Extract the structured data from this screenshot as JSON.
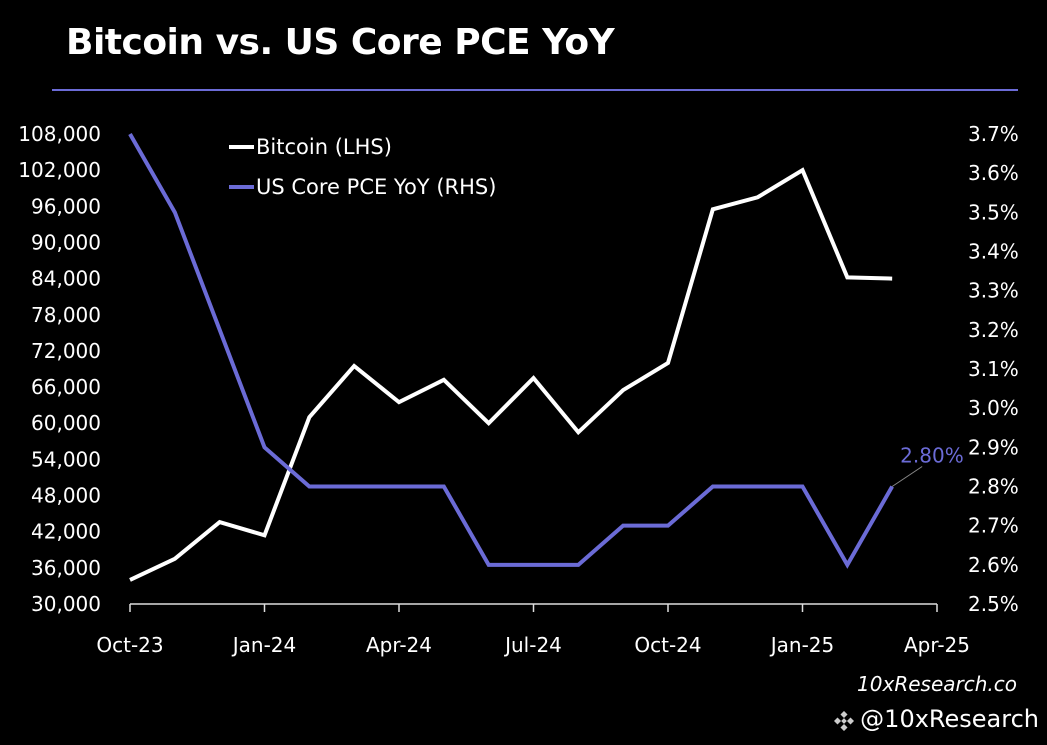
{
  "chart_data": {
    "type": "line",
    "title": "Bitcoin vs. US Core PCE YoY",
    "x": [
      "Oct-23",
      "Nov-23",
      "Dec-23",
      "Jan-24",
      "Feb-24",
      "Mar-24",
      "Apr-24",
      "May-24",
      "Jun-24",
      "Jul-24",
      "Aug-24",
      "Sep-24",
      "Oct-24",
      "Nov-24",
      "Dec-24",
      "Jan-25",
      "Feb-25",
      "Mar-25"
    ],
    "x_ticks": [
      "Oct-23",
      "Jan-24",
      "Apr-24",
      "Jul-24",
      "Oct-24",
      "Jan-25",
      "Apr-25"
    ],
    "y_left": {
      "range": [
        30000,
        108000
      ],
      "ticks": [
        "30,000",
        "36,000",
        "42,000",
        "48,000",
        "54,000",
        "60,000",
        "66,000",
        "72,000",
        "78,000",
        "84,000",
        "90,000",
        "96,000",
        "102,000",
        "108,000"
      ]
    },
    "y_right": {
      "range": [
        2.5,
        3.7
      ],
      "ticks": [
        "2.5%",
        "2.6%",
        "2.7%",
        "2.8%",
        "2.9%",
        "3.0%",
        "3.1%",
        "3.2%",
        "3.3%",
        "3.4%",
        "3.5%",
        "3.6%",
        "3.7%"
      ]
    },
    "series": [
      {
        "name": "Bitcoin (LHS)",
        "axis": "left",
        "color": "#ffffff",
        "values": [
          34000,
          37500,
          43600,
          41400,
          61000,
          69500,
          63500,
          67200,
          60000,
          67500,
          58500,
          65500,
          70000,
          95500,
          97500,
          102000,
          84200,
          84000
        ]
      },
      {
        "name": "US Core PCE YoY (RHS)",
        "axis": "right",
        "color": "#6b6bd6",
        "values": [
          3.7,
          3.5,
          3.2,
          2.9,
          2.8,
          2.8,
          2.8,
          2.8,
          2.6,
          2.6,
          2.6,
          2.7,
          2.7,
          2.8,
          2.8,
          2.8,
          2.6,
          2.8
        ]
      }
    ],
    "annotation": "2.80%",
    "legend": "top-left",
    "grid": false
  },
  "header": {
    "title": "Bitcoin vs. US Core PCE YoY"
  },
  "footer": {
    "site": "10xResearch.co",
    "handle": "@10xResearch"
  }
}
